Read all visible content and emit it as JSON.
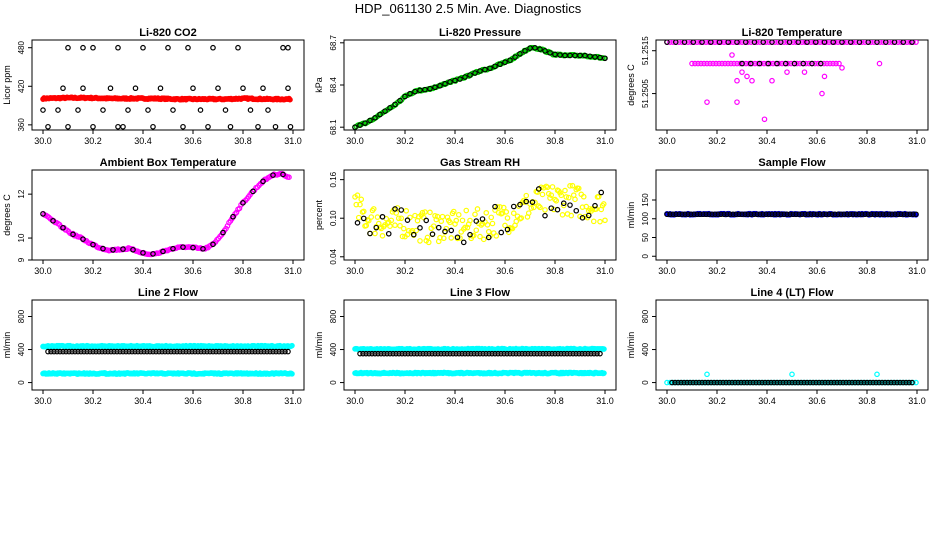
{
  "title": "HDP_061130  2.5 Min. Ave. Diagnostics",
  "colors": {
    "red": "#ff0000",
    "black": "#000000",
    "green": "#00cc00",
    "magenta": "#ff00ff",
    "yellow": "#ffff00",
    "blue": "#0000ff",
    "cyan": "#00ffff"
  },
  "chart_data": [
    {
      "type": "scatter",
      "title": "Li-820 CO2",
      "ylabel": "Licor ppm",
      "xlim": [
        29.98,
        31.02
      ],
      "ylim": [
        352,
        492
      ],
      "xticks": [
        "30.0",
        "30.2",
        "30.4",
        "30.6",
        "30.8",
        "31.0"
      ],
      "yticks": [
        {
          "v": 360,
          "label": "360"
        },
        {
          "v": 420,
          "label": "420"
        },
        {
          "v": 480,
          "label": "480"
        }
      ],
      "series": [
        {
          "name": "ave",
          "color": "red",
          "style": "dense",
          "x0": 30.0,
          "x1": 30.99,
          "y": [
            401,
            402,
            402,
            401,
            401,
            401,
            400,
            400,
            400,
            401,
            400,
            400
          ]
        },
        {
          "name": "scatter",
          "color": "black",
          "style": "markers",
          "points": [
            [
              30.0,
              383
            ],
            [
              30.02,
              357
            ],
            [
              30.06,
              383
            ],
            [
              30.08,
              417
            ],
            [
              30.1,
              480
            ],
            [
              30.1,
              357
            ],
            [
              30.14,
              383
            ],
            [
              30.16,
              480
            ],
            [
              30.16,
              417
            ],
            [
              30.2,
              357
            ],
            [
              30.2,
              480
            ],
            [
              30.24,
              383
            ],
            [
              30.27,
              417
            ],
            [
              30.3,
              480
            ],
            [
              30.3,
              357
            ],
            [
              30.32,
              357
            ],
            [
              30.34,
              383
            ],
            [
              30.37,
              417
            ],
            [
              30.4,
              480
            ],
            [
              30.42,
              383
            ],
            [
              30.44,
              357
            ],
            [
              30.47,
              417
            ],
            [
              30.5,
              480
            ],
            [
              30.52,
              383
            ],
            [
              30.56,
              357
            ],
            [
              30.58,
              480
            ],
            [
              30.6,
              417
            ],
            [
              30.63,
              383
            ],
            [
              30.66,
              357
            ],
            [
              30.68,
              480
            ],
            [
              30.7,
              417
            ],
            [
              30.73,
              383
            ],
            [
              30.75,
              357
            ],
            [
              30.78,
              480
            ],
            [
              30.8,
              417
            ],
            [
              30.83,
              383
            ],
            [
              30.86,
              357
            ],
            [
              30.88,
              417
            ],
            [
              30.9,
              383
            ],
            [
              30.93,
              357
            ],
            [
              30.96,
              480
            ],
            [
              30.98,
              480
            ],
            [
              30.98,
              417
            ],
            [
              30.99,
              357
            ]
          ]
        }
      ]
    },
    {
      "type": "scatter",
      "title": "Li-820 Pressure",
      "ylabel": "kPa",
      "xlim": [
        29.98,
        31.02
      ],
      "ylim": [
        68.08,
        68.72
      ],
      "xticks": [
        "30.0",
        "30.2",
        "30.4",
        "30.6",
        "30.8",
        "31.0"
      ],
      "yticks": [
        {
          "v": 68.1,
          "label": "68.1"
        },
        {
          "v": 68.4,
          "label": "68.4"
        },
        {
          "v": 68.7,
          "label": "68.7"
        }
      ],
      "series": [
        {
          "name": "ave",
          "color": "green",
          "style": "markers-dense",
          "x0": 30.0,
          "x1": 31.0,
          "y": [
            68.1,
            68.13,
            68.17,
            68.22,
            68.27,
            68.33,
            68.36,
            68.37,
            68.39,
            68.42,
            68.44,
            68.47,
            68.5,
            68.52,
            68.55,
            68.58,
            68.63,
            68.67,
            68.65,
            68.62,
            68.61,
            68.61,
            68.61,
            68.6,
            68.59
          ]
        },
        {
          "name": "scatter",
          "color": "black",
          "style": "markers-on-line",
          "step": 0.02
        }
      ]
    },
    {
      "type": "scatter",
      "title": "Li-820 Temperature",
      "ylabel": "degrees C",
      "xlim": [
        29.98,
        31.02
      ],
      "ylim": [
        51.24965,
        51.25175
      ],
      "xticks": [
        "30.0",
        "30.2",
        "30.4",
        "30.6",
        "30.8",
        "31.0"
      ],
      "yticks": [
        {
          "v": 51.2505,
          "label": "51.2505"
        },
        {
          "v": 51.2515,
          "label": "51.2515"
        }
      ],
      "series": [
        {
          "name": "top",
          "color": "magenta",
          "style": "row",
          "y": 51.2517,
          "x0": 30.0,
          "x1": 31.0
        },
        {
          "name": "top-black",
          "color": "black",
          "style": "row-sparse",
          "y": 51.2517,
          "x0": 30.0,
          "x1": 31.0
        },
        {
          "name": "mid",
          "color": "magenta",
          "style": "row-partial",
          "y": 51.2512,
          "x0": 30.1,
          "x1": 30.7
        },
        {
          "name": "mid-black",
          "color": "black",
          "style": "row-sparse-partial",
          "y": 51.2512,
          "x0": 30.3,
          "x1": 30.65
        },
        {
          "name": "outliers",
          "color": "magenta",
          "style": "markers",
          "points": [
            [
              30.26,
              51.2514
            ],
            [
              30.3,
              51.251
            ],
            [
              30.28,
              51.2508
            ],
            [
              30.32,
              51.2509
            ],
            [
              30.42,
              51.2508
            ],
            [
              30.48,
              51.251
            ],
            [
              30.55,
              51.251
            ],
            [
              30.63,
              51.2509
            ],
            [
              30.7,
              51.2511
            ],
            [
              30.85,
              51.2512
            ],
            [
              30.16,
              51.2503
            ],
            [
              30.28,
              51.2503
            ],
            [
              30.39,
              51.2499
            ],
            [
              30.62,
              51.2505
            ],
            [
              30.34,
              51.2508
            ]
          ]
        }
      ]
    },
    {
      "type": "scatter",
      "title": "Ambient Box Temperature",
      "ylabel": "degrees C",
      "xlim": [
        29.98,
        31.02
      ],
      "ylim": [
        9.0,
        13.1
      ],
      "xticks": [
        "30.0",
        "30.2",
        "30.4",
        "30.6",
        "30.8",
        "31.0"
      ],
      "yticks": [
        {
          "v": 9,
          "label": "9"
        },
        {
          "v": 10,
          "label": "10"
        },
        {
          "v": 12,
          "label": "12"
        }
      ],
      "series": [
        {
          "name": "ave",
          "color": "magenta",
          "style": "markers-dense",
          "x0": 30.0,
          "x1": 30.99,
          "y": [
            11.1,
            10.8,
            10.5,
            10.2,
            10.0,
            9.75,
            9.55,
            9.45,
            9.48,
            9.52,
            9.4,
            9.25,
            9.3,
            9.45,
            9.55,
            9.6,
            9.55,
            9.5,
            9.75,
            10.3,
            11.0,
            11.6,
            12.1,
            12.55,
            12.85,
            12.95,
            12.7
          ]
        },
        {
          "name": "scatter",
          "color": "black",
          "style": "markers-on-line",
          "step": 0.04
        }
      ]
    },
    {
      "type": "scatter",
      "title": "Gas Stream RH",
      "ylabel": "percent",
      "xlim": [
        29.98,
        31.02
      ],
      "ylim": [
        0.035,
        0.175
      ],
      "xticks": [
        "30.0",
        "30.2",
        "30.4",
        "30.6",
        "30.8",
        "31.0"
      ],
      "yticks": [
        {
          "v": 0.04,
          "label": "0.04"
        },
        {
          "v": 0.1,
          "label": "0.10"
        },
        {
          "v": 0.16,
          "label": "0.16"
        }
      ],
      "series": [
        {
          "name": "ave",
          "color": "yellow",
          "style": "noise",
          "x0": 30.0,
          "x1": 31.0,
          "y": [
            0.115,
            0.1,
            0.095,
            0.09,
            0.095,
            0.09,
            0.085,
            0.09,
            0.085,
            0.088,
            0.09,
            0.095,
            0.1,
            0.11,
            0.12,
            0.125,
            0.13,
            0.13,
            0.125,
            0.12,
            0.115
          ]
        },
        {
          "name": "scatter",
          "color": "black",
          "style": "noise-sparse",
          "step": 0.025
        }
      ]
    },
    {
      "type": "scatter",
      "title": "Sample Flow",
      "ylabel": "ml/min",
      "xlim": [
        29.98,
        31.02
      ],
      "ylim": [
        -10,
        230
      ],
      "xticks": [
        "30.0",
        "30.2",
        "30.4",
        "30.6",
        "30.8",
        "31.0"
      ],
      "yticks": [
        {
          "v": 0,
          "label": "0"
        },
        {
          "v": 50,
          "label": "50"
        },
        {
          "v": 100,
          "label": "100"
        },
        {
          "v": 150,
          "label": "150"
        }
      ],
      "series": [
        {
          "name": "ave",
          "color": "blue",
          "style": "dense-flat",
          "y": 112,
          "x0": 30.0,
          "x1": 31.0
        },
        {
          "name": "scatter",
          "color": "black",
          "style": "row",
          "y": 112,
          "x0": 30.0,
          "x1": 31.0
        }
      ]
    },
    {
      "type": "scatter",
      "title": "Line 2 Flow",
      "ylabel": "ml/min",
      "xlim": [
        29.98,
        31.02
      ],
      "ylim": [
        -90,
        1000
      ],
      "xticks": [
        "30.0",
        "30.2",
        "30.4",
        "30.6",
        "30.8",
        "31.0"
      ],
      "yticks": [
        {
          "v": 0,
          "label": "0"
        },
        {
          "v": 400,
          "label": "400"
        },
        {
          "v": 800,
          "label": "800"
        }
      ],
      "series": [
        {
          "name": "upper",
          "color": "cyan",
          "style": "dense-flat",
          "y": 440,
          "x0": 30.0,
          "x1": 31.0
        },
        {
          "name": "lower",
          "color": "cyan",
          "style": "dense-flat",
          "y": 110,
          "x0": 30.0,
          "x1": 31.0
        },
        {
          "name": "scatter",
          "color": "black",
          "style": "row",
          "y": 375,
          "x0": 30.02,
          "x1": 30.99
        }
      ]
    },
    {
      "type": "scatter",
      "title": "Line 3 Flow",
      "ylabel": "ml/min",
      "xlim": [
        29.98,
        31.02
      ],
      "ylim": [
        -90,
        1000
      ],
      "xticks": [
        "30.0",
        "30.2",
        "30.4",
        "30.6",
        "30.8",
        "31.0"
      ],
      "yticks": [
        {
          "v": 0,
          "label": "0"
        },
        {
          "v": 400,
          "label": "400"
        },
        {
          "v": 800,
          "label": "800"
        }
      ],
      "series": [
        {
          "name": "upper",
          "color": "cyan",
          "style": "dense-flat",
          "y": 405,
          "x0": 30.0,
          "x1": 31.0
        },
        {
          "name": "lower",
          "color": "cyan",
          "style": "dense-flat",
          "y": 115,
          "x0": 30.0,
          "x1": 31.0
        },
        {
          "name": "scatter",
          "color": "black",
          "style": "row",
          "y": 350,
          "x0": 30.02,
          "x1": 30.99
        }
      ]
    },
    {
      "type": "scatter",
      "title": "Line 4 (LT) Flow",
      "ylabel": "ml/min",
      "xlim": [
        29.98,
        31.02
      ],
      "ylim": [
        -90,
        1000
      ],
      "xticks": [
        "30.0",
        "30.2",
        "30.4",
        "30.6",
        "30.8",
        "31.0"
      ],
      "yticks": [
        {
          "v": 0,
          "label": "0"
        },
        {
          "v": 400,
          "label": "400"
        },
        {
          "v": 800,
          "label": "800"
        }
      ],
      "series": [
        {
          "name": "base",
          "color": "cyan",
          "style": "row",
          "y": 0,
          "x0": 30.0,
          "x1": 31.0
        },
        {
          "name": "scatter",
          "color": "black",
          "style": "row",
          "y": 0,
          "x0": 30.02,
          "x1": 30.99
        },
        {
          "name": "spikes",
          "color": "cyan",
          "style": "markers",
          "points": [
            [
              30.16,
              100
            ],
            [
              30.5,
              100
            ],
            [
              30.84,
              100
            ]
          ]
        }
      ]
    }
  ]
}
